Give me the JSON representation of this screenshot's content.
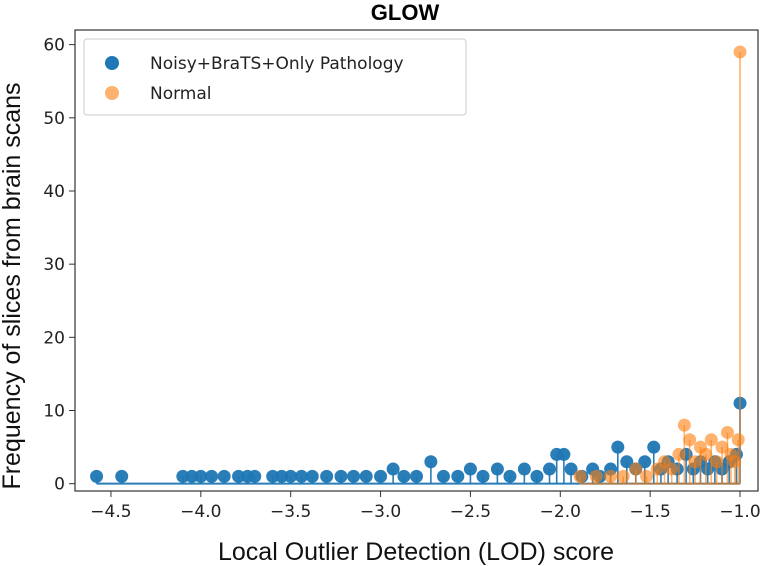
{
  "chart_data": {
    "type": "scatter",
    "title": "GLOW",
    "xlabel": "Local Outlier Detection (LOD) score",
    "ylabel": "Frequency of slices from brain scans",
    "xlim": [
      -4.7,
      -0.9
    ],
    "ylim": [
      -1,
      62
    ],
    "xticks": [
      -4.5,
      -4.0,
      -3.5,
      -3.0,
      -2.5,
      -2.0,
      -1.5,
      -1.0
    ],
    "xtick_labels": [
      "−4.5",
      "−4.0",
      "−3.5",
      "−3.0",
      "−2.5",
      "−2.0",
      "−1.5",
      "−1.0"
    ],
    "yticks": [
      0,
      10,
      20,
      30,
      40,
      50,
      60
    ],
    "ytick_labels": [
      "0",
      "10",
      "20",
      "30",
      "40",
      "50",
      "60"
    ],
    "grid": false,
    "legend_position": "top-left",
    "series": [
      {
        "name": "Noisy+BraTS+Only Pathology",
        "color": "#1f77b4",
        "points": [
          [
            -4.58,
            1
          ],
          [
            -4.44,
            1
          ],
          [
            -4.1,
            1
          ],
          [
            -4.05,
            1
          ],
          [
            -4.0,
            1
          ],
          [
            -3.94,
            1
          ],
          [
            -3.87,
            1
          ],
          [
            -3.79,
            1
          ],
          [
            -3.74,
            1
          ],
          [
            -3.7,
            1
          ],
          [
            -3.6,
            1
          ],
          [
            -3.55,
            1
          ],
          [
            -3.5,
            1
          ],
          [
            -3.44,
            1
          ],
          [
            -3.38,
            1
          ],
          [
            -3.3,
            1
          ],
          [
            -3.22,
            1
          ],
          [
            -3.15,
            1
          ],
          [
            -3.08,
            1
          ],
          [
            -3.0,
            1
          ],
          [
            -2.93,
            2
          ],
          [
            -2.87,
            1
          ],
          [
            -2.8,
            1
          ],
          [
            -2.72,
            3
          ],
          [
            -2.65,
            1
          ],
          [
            -2.57,
            1
          ],
          [
            -2.5,
            2
          ],
          [
            -2.43,
            1
          ],
          [
            -2.35,
            2
          ],
          [
            -2.28,
            1
          ],
          [
            -2.2,
            2
          ],
          [
            -2.13,
            1
          ],
          [
            -2.06,
            2
          ],
          [
            -2.02,
            4
          ],
          [
            -1.98,
            4
          ],
          [
            -1.94,
            2
          ],
          [
            -1.88,
            1
          ],
          [
            -1.82,
            2
          ],
          [
            -1.78,
            1
          ],
          [
            -1.72,
            2
          ],
          [
            -1.68,
            5
          ],
          [
            -1.63,
            3
          ],
          [
            -1.58,
            2
          ],
          [
            -1.53,
            3
          ],
          [
            -1.48,
            5
          ],
          [
            -1.44,
            2
          ],
          [
            -1.4,
            3
          ],
          [
            -1.35,
            2
          ],
          [
            -1.3,
            4
          ],
          [
            -1.26,
            2
          ],
          [
            -1.22,
            3
          ],
          [
            -1.18,
            2
          ],
          [
            -1.14,
            3
          ],
          [
            -1.1,
            2
          ],
          [
            -1.06,
            3
          ],
          [
            -1.02,
            4
          ],
          [
            -1.0,
            11
          ]
        ]
      },
      {
        "name": "Normal",
        "color": "#ff7f0e",
        "points": [
          [
            -1.89,
            1
          ],
          [
            -1.8,
            1
          ],
          [
            -1.72,
            1
          ],
          [
            -1.65,
            1
          ],
          [
            -1.58,
            2
          ],
          [
            -1.52,
            1
          ],
          [
            -1.46,
            2
          ],
          [
            -1.42,
            3
          ],
          [
            -1.38,
            2
          ],
          [
            -1.34,
            4
          ],
          [
            -1.31,
            8
          ],
          [
            -1.28,
            6
          ],
          [
            -1.25,
            3
          ],
          [
            -1.22,
            5
          ],
          [
            -1.19,
            4
          ],
          [
            -1.16,
            6
          ],
          [
            -1.13,
            3
          ],
          [
            -1.1,
            5
          ],
          [
            -1.07,
            7
          ],
          [
            -1.05,
            4
          ],
          [
            -1.03,
            3
          ],
          [
            -1.01,
            6
          ],
          [
            -1.0,
            59
          ]
        ]
      }
    ]
  }
}
